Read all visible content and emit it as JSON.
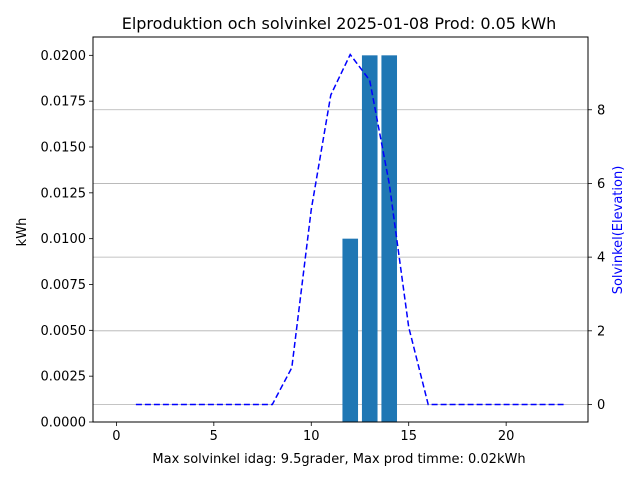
{
  "chart_data": {
    "type": "bar",
    "title": "Elproduktion och solvinkel 2025-01-08 Prod: 0.05 kWh",
    "xlabel": "Max solvinkel idag: 9.5grader, Max prod timme: 0.02kWh",
    "ylabel": "kWh",
    "y2label": "Solvinkel(Elevation)",
    "xlim": [
      -1.2,
      24.2
    ],
    "ylim": [
      0,
      0.021
    ],
    "y2lim": [
      -0.475,
      9.975
    ],
    "x_ticks": [
      0,
      5,
      10,
      15,
      20
    ],
    "y_ticks": [
      0.0,
      0.0025,
      0.005,
      0.0075,
      0.01,
      0.0125,
      0.015,
      0.0175,
      0.02
    ],
    "y_tick_labels": [
      "0.0000",
      "0.0025",
      "0.0050",
      "0.0075",
      "0.0100",
      "0.0125",
      "0.0150",
      "0.0175",
      "0.0200"
    ],
    "y2_ticks": [
      0,
      2,
      4,
      6,
      8
    ],
    "y2_tick_labels": [
      "0",
      "2",
      "4",
      "6",
      "8"
    ],
    "grid": "horizontal lines at right-axis ticks",
    "bar_color": "#1f77b4",
    "line_color": "#0000ff",
    "series": [
      {
        "kind": "bar",
        "axis": "left",
        "x": [
          12,
          13,
          14
        ],
        "values": [
          0.01,
          0.02,
          0.02
        ]
      },
      {
        "kind": "line",
        "style": "dashed",
        "axis": "right",
        "x": [
          1,
          2,
          3,
          4,
          5,
          6,
          7,
          8,
          9,
          10,
          11,
          12,
          13,
          14,
          15,
          16,
          17,
          18,
          19,
          20,
          21,
          22,
          23
        ],
        "values": [
          0,
          0,
          0,
          0,
          0,
          0,
          0,
          0,
          1.0,
          5.3,
          8.4,
          9.5,
          8.8,
          6.0,
          2.1,
          0,
          0,
          0,
          0,
          0,
          0,
          0,
          0
        ]
      }
    ]
  }
}
